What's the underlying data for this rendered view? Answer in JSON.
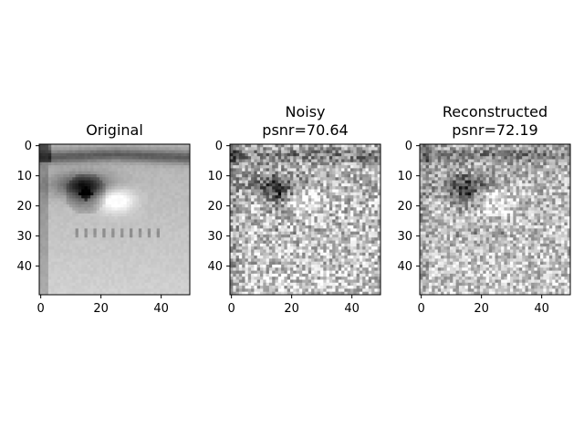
{
  "chart_data": [
    {
      "type": "heatmap",
      "title": "Original",
      "subtitle": "",
      "colormap": "gray",
      "content": "close-up grayscale photo of an eye",
      "x_ticks": [
        "0",
        "20",
        "40"
      ],
      "y_ticks": [
        "0",
        "10",
        "20",
        "30",
        "40"
      ],
      "xlim": [
        0,
        50
      ],
      "ylim": [
        50,
        0
      ],
      "grid": false
    },
    {
      "type": "heatmap",
      "title": "Noisy",
      "subtitle": "psnr=70.64",
      "colormap": "gray",
      "content": "same eye image with heavy pixel noise",
      "x_ticks": [
        "0",
        "20",
        "40"
      ],
      "y_ticks": [
        "0",
        "10",
        "20",
        "30",
        "40"
      ],
      "xlim": [
        0,
        50
      ],
      "ylim": [
        50,
        0
      ],
      "grid": false
    },
    {
      "type": "heatmap",
      "title": "Reconstructed",
      "subtitle": "psnr=72.19",
      "colormap": "gray",
      "content": "denoised eye image, still noisy",
      "x_ticks": [
        "0",
        "20",
        "40"
      ],
      "y_ticks": [
        "0",
        "10",
        "20",
        "30",
        "40"
      ],
      "xlim": [
        0,
        50
      ],
      "ylim": [
        50,
        0
      ],
      "grid": false
    }
  ]
}
